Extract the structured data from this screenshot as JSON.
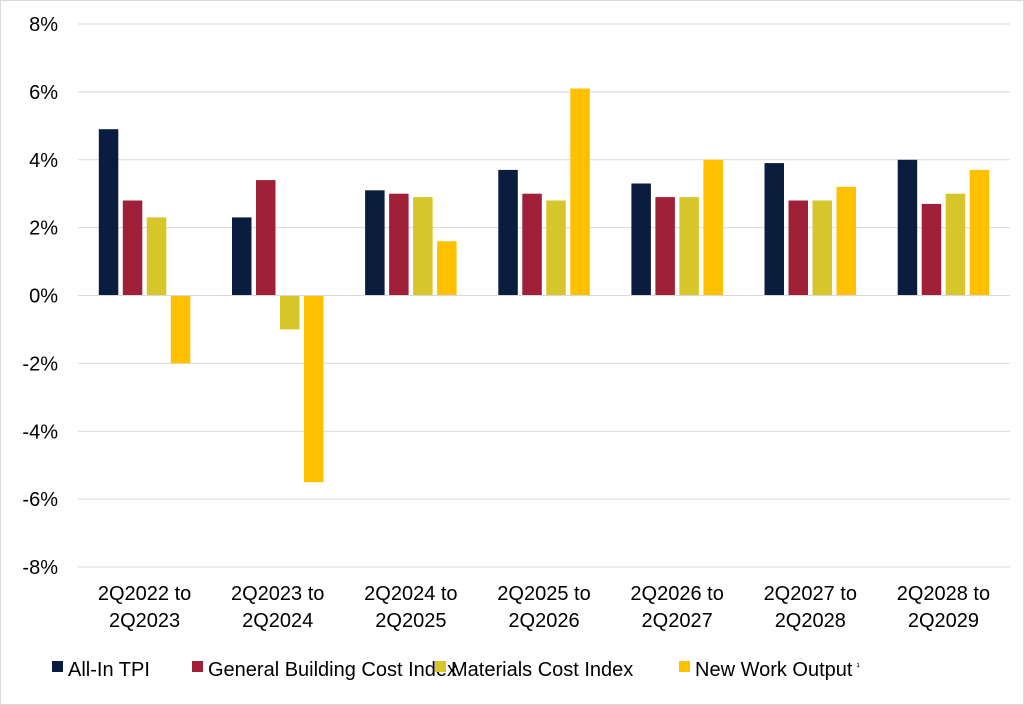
{
  "chart_data": {
    "type": "bar",
    "categories": [
      [
        "2Q2022 to",
        "2Q2023"
      ],
      [
        "2Q2023 to",
        "2Q2024"
      ],
      [
        "2Q2024 to",
        "2Q2025"
      ],
      [
        "2Q2025 to",
        "2Q2026"
      ],
      [
        "2Q2026 to",
        "2Q2027"
      ],
      [
        "2Q2027 to",
        "2Q2028"
      ],
      [
        "2Q2028 to",
        "2Q2029"
      ]
    ],
    "series": [
      {
        "name": "All-In TPI",
        "color": "#0b1d3f",
        "values": [
          4.9,
          2.3,
          3.1,
          3.7,
          3.3,
          3.9,
          4.0
        ]
      },
      {
        "name": "General Building Cost Index",
        "color": "#a0203a",
        "values": [
          2.8,
          3.4,
          3.0,
          3.0,
          2.9,
          2.8,
          2.7
        ]
      },
      {
        "name": "Materials Cost Index",
        "color": "#d6c62a",
        "values": [
          2.3,
          -1.0,
          2.9,
          2.8,
          2.9,
          2.8,
          3.0
        ]
      },
      {
        "name": "New Work Output",
        "color": "#ffc000",
        "values": [
          -2.0,
          -5.5,
          1.6,
          6.1,
          4.0,
          3.2,
          3.7
        ]
      }
    ],
    "legend_suffix": "¹",
    "ylim": [
      -8,
      8
    ],
    "yticks": [
      "8%",
      "6%",
      "4%",
      "2%",
      "0%",
      "-2%",
      "-4%",
      "-6%",
      "-8%"
    ],
    "ytick_values": [
      8,
      6,
      4,
      2,
      0,
      -2,
      -4,
      -6,
      -8
    ],
    "grid": true,
    "legend_position": "bottom",
    "title": "",
    "xlabel": "",
    "ylabel": ""
  }
}
